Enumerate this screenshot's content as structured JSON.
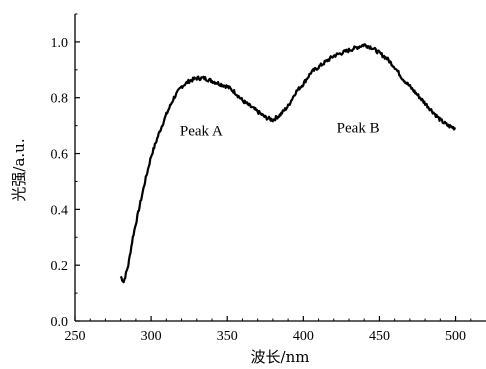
{
  "chart_data": {
    "type": "line",
    "title": "",
    "xlabel": "波长/nm",
    "ylabel": "光强/a.u.",
    "xlim": [
      250,
      520
    ],
    "ylim": [
      0,
      1.1
    ],
    "xticks": [
      "250",
      "300",
      "350",
      "400",
      "450",
      "500"
    ],
    "yticks": [
      "0.0",
      "0.2",
      "0.4",
      "0.6",
      "0.8",
      "1.0"
    ],
    "grid": false,
    "legend": "none",
    "line_color": "#000000",
    "series": [
      {
        "x": [
          280,
          282,
          285,
          288,
          292,
          296,
          300,
          305,
          310,
          315,
          320,
          325,
          330,
          335,
          340,
          345,
          350,
          355,
          360,
          365,
          370,
          375,
          380,
          385,
          390,
          395,
          400,
          405,
          410,
          415,
          420,
          425,
          430,
          435,
          440,
          445,
          450,
          455,
          460,
          465,
          470,
          475,
          480,
          485,
          490,
          495,
          500
        ],
        "values": [
          0.16,
          0.14,
          0.2,
          0.3,
          0.4,
          0.5,
          0.59,
          0.67,
          0.74,
          0.8,
          0.84,
          0.86,
          0.87,
          0.87,
          0.86,
          0.85,
          0.84,
          0.82,
          0.79,
          0.77,
          0.75,
          0.73,
          0.72,
          0.74,
          0.77,
          0.82,
          0.85,
          0.89,
          0.91,
          0.93,
          0.95,
          0.96,
          0.97,
          0.98,
          0.99,
          0.98,
          0.96,
          0.94,
          0.91,
          0.87,
          0.84,
          0.81,
          0.78,
          0.75,
          0.72,
          0.7,
          0.69
        ]
      }
    ],
    "annotations": [
      {
        "text": "Peak A",
        "x": 333,
        "y": 0.665
      },
      {
        "text": "Peak B",
        "x": 436,
        "y": 0.675
      }
    ]
  }
}
